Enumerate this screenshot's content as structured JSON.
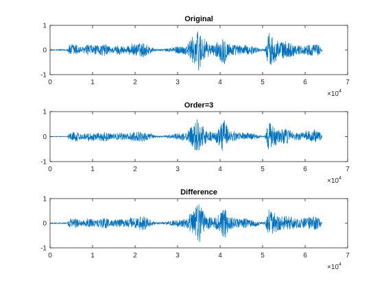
{
  "colors": {
    "line": "#0072BD",
    "axes": "#262626",
    "background": "#ffffff"
  },
  "chart_data": [
    {
      "type": "line",
      "title": "Original",
      "xlabel": "",
      "ylabel": "",
      "xlim": [
        0,
        70000
      ],
      "ylim": [
        -1,
        1
      ],
      "xticks": [
        0,
        1,
        2,
        3,
        4,
        5,
        6,
        7
      ],
      "yticks": [
        -1,
        0,
        1
      ],
      "x_exponent_label": "×10",
      "x_exponent": "4",
      "grid": false,
      "signal_length": 64000,
      "envelope": [
        [
          0,
          0.02
        ],
        [
          4000,
          0.02
        ],
        [
          4500,
          0.22
        ],
        [
          6000,
          0.25
        ],
        [
          7500,
          0.12
        ],
        [
          9000,
          0.22
        ],
        [
          11000,
          0.18
        ],
        [
          13000,
          0.25
        ],
        [
          14500,
          0.12
        ],
        [
          16000,
          0.2
        ],
        [
          18000,
          0.15
        ],
        [
          20000,
          0.25
        ],
        [
          22000,
          0.3
        ],
        [
          24000,
          0.12
        ],
        [
          25000,
          0.03
        ],
        [
          27000,
          0.05
        ],
        [
          30000,
          0.15
        ],
        [
          32000,
          0.2
        ],
        [
          33500,
          0.55
        ],
        [
          35000,
          0.85
        ],
        [
          36000,
          0.55
        ],
        [
          37000,
          0.3
        ],
        [
          38500,
          0.2
        ],
        [
          40000,
          0.45
        ],
        [
          41000,
          0.6
        ],
        [
          42000,
          0.3
        ],
        [
          44000,
          0.2
        ],
        [
          46000,
          0.2
        ],
        [
          48000,
          0.15
        ],
        [
          49500,
          0.05
        ],
        [
          50500,
          0.05
        ],
        [
          51500,
          0.75
        ],
        [
          52500,
          0.55
        ],
        [
          54000,
          0.35
        ],
        [
          56000,
          0.35
        ],
        [
          58000,
          0.18
        ],
        [
          60000,
          0.2
        ],
        [
          62000,
          0.25
        ],
        [
          63500,
          0.2
        ],
        [
          64000,
          0.05
        ]
      ]
    },
    {
      "type": "line",
      "title": "Order=3",
      "xlabel": "",
      "ylabel": "",
      "xlim": [
        0,
        70000
      ],
      "ylim": [
        -1,
        1
      ],
      "xticks": [
        0,
        1,
        2,
        3,
        4,
        5,
        6,
        7
      ],
      "yticks": [
        -1,
        0,
        1
      ],
      "x_exponent_label": "×10",
      "x_exponent": "4",
      "grid": false,
      "signal_length": 64000,
      "envelope": [
        [
          0,
          0.01
        ],
        [
          4000,
          0.01
        ],
        [
          4500,
          0.15
        ],
        [
          6000,
          0.2
        ],
        [
          7500,
          0.1
        ],
        [
          9000,
          0.18
        ],
        [
          11000,
          0.15
        ],
        [
          13000,
          0.2
        ],
        [
          14500,
          0.1
        ],
        [
          16000,
          0.15
        ],
        [
          18000,
          0.12
        ],
        [
          20000,
          0.2
        ],
        [
          22000,
          0.22
        ],
        [
          24000,
          0.1
        ],
        [
          25000,
          0.02
        ],
        [
          27000,
          0.04
        ],
        [
          30000,
          0.12
        ],
        [
          32000,
          0.15
        ],
        [
          33500,
          0.45
        ],
        [
          35000,
          0.7
        ],
        [
          36000,
          0.45
        ],
        [
          37000,
          0.25
        ],
        [
          38500,
          0.15
        ],
        [
          40000,
          0.4
        ],
        [
          41000,
          0.75
        ],
        [
          42000,
          0.25
        ],
        [
          44000,
          0.15
        ],
        [
          46000,
          0.15
        ],
        [
          48000,
          0.12
        ],
        [
          49500,
          0.03
        ],
        [
          50500,
          0.03
        ],
        [
          51500,
          0.6
        ],
        [
          52500,
          0.4
        ],
        [
          54000,
          0.3
        ],
        [
          56000,
          0.3
        ],
        [
          58000,
          0.15
        ],
        [
          60000,
          0.2
        ],
        [
          62000,
          0.25
        ],
        [
          63500,
          0.18
        ],
        [
          64000,
          0.03
        ]
      ]
    },
    {
      "type": "line",
      "title": "Difference",
      "xlabel": "",
      "ylabel": "",
      "xlim": [
        0,
        70000
      ],
      "ylim": [
        -1,
        1
      ],
      "xticks": [
        0,
        1,
        2,
        3,
        4,
        5,
        6,
        7
      ],
      "yticks": [
        -1,
        0,
        1
      ],
      "x_exponent_label": "×10",
      "x_exponent": "4",
      "grid": false,
      "signal_length": 64000,
      "envelope": [
        [
          0,
          0.02
        ],
        [
          4000,
          0.02
        ],
        [
          4500,
          0.15
        ],
        [
          6000,
          0.2
        ],
        [
          7500,
          0.1
        ],
        [
          9000,
          0.18
        ],
        [
          11000,
          0.15
        ],
        [
          13000,
          0.25
        ],
        [
          14500,
          0.1
        ],
        [
          16000,
          0.18
        ],
        [
          18000,
          0.15
        ],
        [
          20000,
          0.25
        ],
        [
          22000,
          0.3
        ],
        [
          24000,
          0.1
        ],
        [
          25000,
          0.03
        ],
        [
          27000,
          0.05
        ],
        [
          30000,
          0.15
        ],
        [
          32000,
          0.2
        ],
        [
          33500,
          0.45
        ],
        [
          35000,
          0.9
        ],
        [
          36000,
          0.5
        ],
        [
          37000,
          0.3
        ],
        [
          38500,
          0.2
        ],
        [
          40000,
          0.4
        ],
        [
          41000,
          0.75
        ],
        [
          42000,
          0.3
        ],
        [
          44000,
          0.2
        ],
        [
          46000,
          0.2
        ],
        [
          48000,
          0.15
        ],
        [
          49500,
          0.05
        ],
        [
          50500,
          0.05
        ],
        [
          51500,
          0.6
        ],
        [
          52500,
          0.45
        ],
        [
          54000,
          0.3
        ],
        [
          56000,
          0.3
        ],
        [
          58000,
          0.18
        ],
        [
          60000,
          0.22
        ],
        [
          62000,
          0.3
        ],
        [
          63500,
          0.2
        ],
        [
          64000,
          0.05
        ]
      ]
    }
  ]
}
